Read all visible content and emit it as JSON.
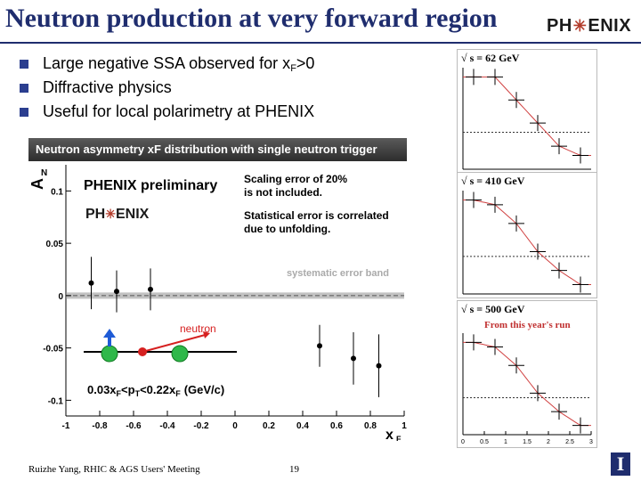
{
  "slide": {
    "title": "Neutron production at very forward region",
    "logo_left": "PH",
    "logo_right": "ENIX",
    "bullets": [
      {
        "text_before": "Large negative SSA observed for x",
        "sub": "F",
        "text_after": ">0"
      },
      {
        "text_before": "Diffractive physics",
        "sub": "",
        "text_after": ""
      },
      {
        "text_before": "Useful for local polarimetry at PHENIX",
        "sub": "",
        "text_after": ""
      }
    ],
    "footer": {
      "author": "Ruizhe Yang, RHIC & AGS Users' Meeting",
      "page": "19"
    }
  },
  "colors": {
    "title": "#1f2d6e",
    "bullet": "#2b3e8f",
    "fit_curve": "#d04040",
    "marker": "#000000"
  },
  "main_plot": {
    "header": "Neutron asymmetry xF distribution with single neutron trigger",
    "ylabel": "A",
    "ylabel_sub": "N",
    "xlabel": "x",
    "xlabel_sub": "F",
    "preliminary": "PHENIX preliminary",
    "logo_left": "PH",
    "logo_right": "ENIX",
    "note1_line1": "Scaling error of 20%",
    "note1_line2": "is not included.",
    "note2_line1": "Statistical error is correlated",
    "note2_line2": "due to unfolding.",
    "band_label": "systematic error band",
    "neutron_label": "neutron",
    "cut_label": "0.03x",
    "cut_label_sub1": "F",
    "cut_label_mid": "<p",
    "cut_label_sub2": "T",
    "cut_label_end": "<0.22x",
    "cut_label_sub3": "F",
    "cut_label_units": "(GeV/c)",
    "x_ticks": [
      "-1",
      "-0.8",
      "-0.6",
      "-0.4",
      "-0.2",
      "0",
      "0.2",
      "0.4",
      "0.6",
      "0.8",
      "1"
    ],
    "y_ticks": [
      "0.1",
      "0.05",
      "0",
      "-0.05",
      "-0.1"
    ]
  },
  "chart_data": [
    {
      "type": "scatter",
      "title": "Neutron asymmetry xF distribution with single neutron trigger",
      "xlabel": "xF",
      "ylabel": "AN",
      "xlim": [
        -1,
        1
      ],
      "ylim": [
        -0.115,
        0.125
      ],
      "grid": false,
      "series": [
        {
          "x": [
            -0.85,
            -0.7,
            -0.5,
            0.5,
            0.7,
            0.85
          ],
          "y": [
            0.012,
            0.004,
            0.006,
            -0.048,
            -0.06,
            -0.067
          ],
          "yerr": [
            0.025,
            0.02,
            0.02,
            0.02,
            0.025,
            0.03
          ]
        }
      ]
    },
    {
      "type": "line",
      "title": "√ s = 62 GeV",
      "xlim": [
        0,
        3
      ],
      "series": [
        {
          "x": [
            0.25,
            0.75,
            1.25,
            1.75,
            2.25,
            2.75
          ],
          "y": [
            0.12,
            0.12,
            0.07,
            0.02,
            -0.03,
            -0.05
          ]
        }
      ]
    },
    {
      "type": "line",
      "title": "√ s = 410 GeV",
      "xlim": [
        0,
        3
      ],
      "series": [
        {
          "x": [
            0.25,
            0.75,
            1.25,
            1.75,
            2.25,
            2.75
          ],
          "y": [
            0.12,
            0.11,
            0.07,
            0.01,
            -0.03,
            -0.06
          ]
        }
      ]
    },
    {
      "type": "line",
      "title": "√ s = 500 GeV",
      "annotation": "From this year's run",
      "x_ticks": [
        "0",
        "0.5",
        "1",
        "1.5",
        "2",
        "2.5",
        "3"
      ],
      "xlim": [
        0,
        3
      ],
      "series": [
        {
          "x": [
            0.25,
            0.75,
            1.25,
            1.75,
            2.25,
            2.75
          ],
          "y": [
            0.12,
            0.11,
            0.07,
            0.01,
            -0.03,
            -0.06
          ]
        }
      ]
    }
  ]
}
